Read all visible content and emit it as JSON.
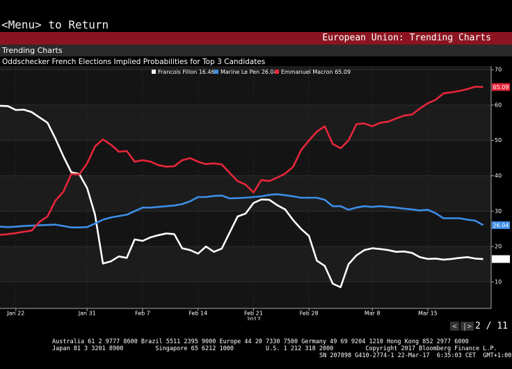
{
  "header": {
    "menu": "<Menu> to Return",
    "section": "European Union: Trending Charts",
    "tab": "Trending Charts",
    "pager": "2 / 11"
  },
  "chart_data": {
    "type": "line",
    "title": "Oddschecker French Elections Implied Probabilities for Top 3 Candidates",
    "x": [
      "2017-01-20",
      "2017-01-21",
      "2017-01-22",
      "2017-01-23",
      "2017-01-24",
      "2017-01-25",
      "2017-01-26",
      "2017-01-27",
      "2017-01-28",
      "2017-01-29",
      "2017-01-30",
      "2017-01-31",
      "2017-02-01",
      "2017-02-02",
      "2017-02-03",
      "2017-02-04",
      "2017-02-05",
      "2017-02-06",
      "2017-02-07",
      "2017-02-08",
      "2017-02-09",
      "2017-02-10",
      "2017-02-11",
      "2017-02-12",
      "2017-02-13",
      "2017-02-14",
      "2017-02-15",
      "2017-02-16",
      "2017-02-17",
      "2017-02-18",
      "2017-02-19",
      "2017-02-20",
      "2017-02-21",
      "2017-02-22",
      "2017-02-23",
      "2017-02-24",
      "2017-02-25",
      "2017-02-26",
      "2017-02-27",
      "2017-02-28",
      "2017-03-01",
      "2017-03-02",
      "2017-03-03",
      "2017-03-04",
      "2017-03-05",
      "2017-03-06",
      "2017-03-07",
      "2017-03-08",
      "2017-03-09",
      "2017-03-10",
      "2017-03-11",
      "2017-03-12",
      "2017-03-13",
      "2017-03-14",
      "2017-03-15",
      "2017-03-16",
      "2017-03-17",
      "2017-03-18",
      "2017-03-19",
      "2017-03-20",
      "2017-03-21",
      "2017-03-22"
    ],
    "xlim": [
      "2017-01-20",
      "2017-03-23"
    ],
    "xticks": [
      {
        "value": "2017-01-22",
        "label": "Jan 22"
      },
      {
        "value": "2017-01-31",
        "label": "Jan 31"
      },
      {
        "value": "2017-02-07",
        "label": "Feb 7"
      },
      {
        "value": "2017-02-14",
        "label": "Feb 14"
      },
      {
        "value": "2017-02-21",
        "label": "Feb 21"
      },
      {
        "value": "2017-02-28",
        "label": "Feb 28"
      },
      {
        "value": "2017-03-08",
        "label": "Mar 8"
      },
      {
        "value": "2017-03-15",
        "label": "Mar 15"
      }
    ],
    "x_year": "2017",
    "ylim": [
      2.5,
      71
    ],
    "yticks": [
      10,
      20,
      30,
      40,
      50,
      60,
      70
    ],
    "grid": true,
    "series": [
      {
        "name": "Francois Fillon 16.46",
        "color": "#ffffff",
        "values": [
          59.8,
          59.7,
          58.6,
          58.7,
          58.0,
          56.5,
          55.0,
          50.5,
          45.5,
          41.0,
          40.5,
          36.5,
          29.0,
          15.2,
          15.8,
          17.2,
          16.8,
          22.0,
          21.6,
          22.6,
          23.2,
          23.7,
          23.5,
          19.5,
          19.0,
          18.0,
          20.0,
          18.5,
          19.4,
          24.0,
          28.5,
          29.3,
          32.3,
          33.3,
          33.2,
          31.7,
          30.5,
          27.5,
          25.0,
          23.0,
          16.0,
          14.5,
          9.5,
          8.5,
          15.0,
          17.5,
          19.0,
          19.5,
          19.3,
          19.0,
          18.5,
          18.6,
          18.2,
          17.0,
          16.5,
          16.6,
          16.3,
          16.5,
          16.8,
          17.0,
          16.6,
          16.46
        ]
      },
      {
        "name": "Marine Le Pen 26.04",
        "color": "#3d8ee8",
        "values": [
          25.6,
          25.5,
          25.6,
          25.8,
          25.9,
          26.0,
          26.1,
          26.2,
          25.8,
          25.4,
          25.4,
          25.5,
          26.5,
          27.6,
          28.2,
          28.6,
          29.0,
          30.0,
          31.0,
          31.0,
          31.2,
          31.4,
          31.6,
          32.0,
          32.8,
          34.0,
          34.0,
          34.3,
          34.4,
          33.6,
          33.7,
          33.8,
          34.0,
          34.2,
          34.6,
          34.8,
          34.5,
          34.2,
          33.8,
          33.8,
          33.8,
          33.2,
          31.4,
          31.4,
          30.4,
          31.0,
          31.4,
          31.2,
          31.4,
          31.2,
          31.0,
          30.7,
          30.5,
          30.2,
          30.4,
          29.4,
          28.0,
          28.0,
          28.0,
          27.6,
          27.3,
          26.04
        ]
      },
      {
        "name": "Emmanuel Macron 65.09",
        "color": "#e8263a",
        "values": [
          23.3,
          23.5,
          23.8,
          24.2,
          24.5,
          27.0,
          28.5,
          33.0,
          35.5,
          40.5,
          40.4,
          43.5,
          48.3,
          50.3,
          48.8,
          46.8,
          47.0,
          44.0,
          44.4,
          44.0,
          43.0,
          42.6,
          42.7,
          44.4,
          45.0,
          44.0,
          43.3,
          43.5,
          43.2,
          40.8,
          38.5,
          37.5,
          35.3,
          38.8,
          38.5,
          39.5,
          40.6,
          42.5,
          47.2,
          50.0,
          52.5,
          54.0,
          49.0,
          47.8,
          50.0,
          54.6,
          54.8,
          54.0,
          55.0,
          55.3,
          56.2,
          57.0,
          57.3,
          59.0,
          60.5,
          61.5,
          63.3,
          63.6,
          64.0,
          64.5,
          65.2,
          65.09
        ]
      }
    ]
  },
  "footer": {
    "line1": "Australia 61 2 9777 8600 Brazil 5511 2395 9000 Europe 44 20 7330 7500 Germany 49 69 9204 1210 Hong Kong 852 2977 6000",
    "line2": "Japan 81 3 3201 8900         Singapore 65 6212 1000         U.S. 1 212 318 2000         Copyright 2017 Bloomberg Finance L.P.",
    "line3": "SN 207898 G410-2774-1 22-Mar-17  6:35:03 CET  GMT+1:00"
  }
}
